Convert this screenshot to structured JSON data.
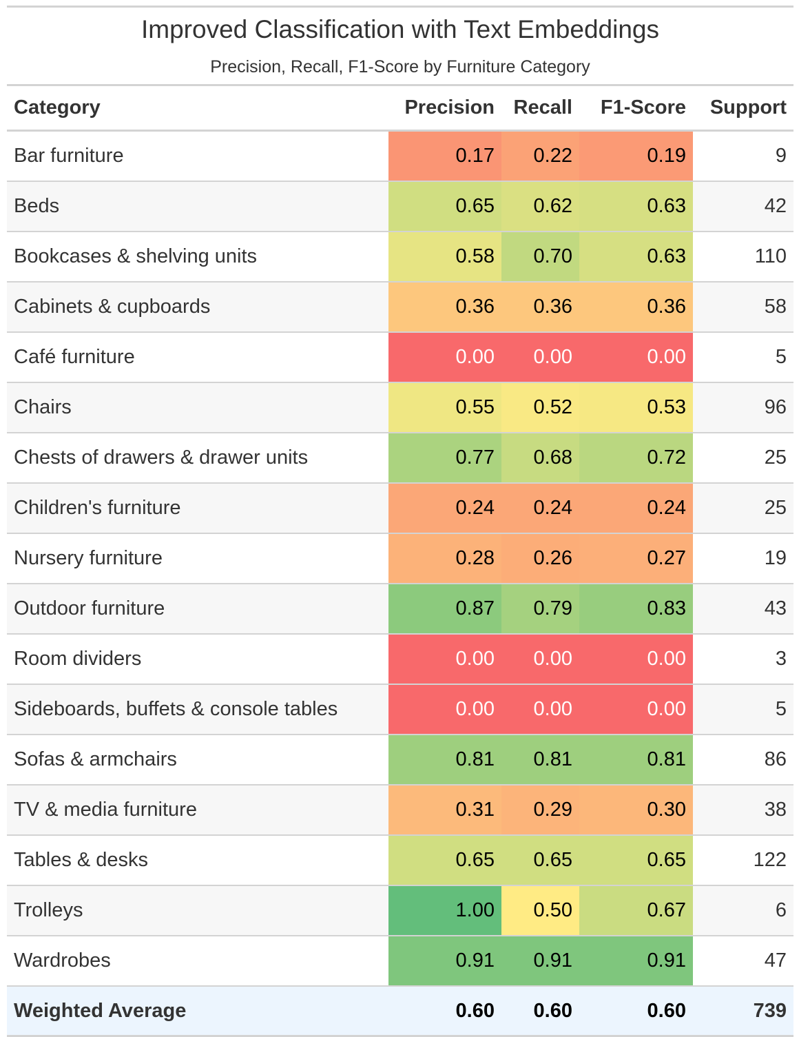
{
  "chart_data": {
    "type": "table",
    "title": "Improved Classification with Text Embeddings",
    "subtitle": "Precision, Recall, F1-Score by Furniture Category",
    "columns": [
      "Category",
      "Precision",
      "Recall",
      "F1-Score",
      "Support"
    ],
    "rows": [
      {
        "category": "Bar furniture",
        "precision": "0.17",
        "recall": "0.22",
        "f1": "0.19",
        "support": "9"
      },
      {
        "category": "Beds",
        "precision": "0.65",
        "recall": "0.62",
        "f1": "0.63",
        "support": "42"
      },
      {
        "category": "Bookcases & shelving units",
        "precision": "0.58",
        "recall": "0.70",
        "f1": "0.63",
        "support": "110"
      },
      {
        "category": "Cabinets & cupboards",
        "precision": "0.36",
        "recall": "0.36",
        "f1": "0.36",
        "support": "58"
      },
      {
        "category": "Café furniture",
        "precision": "0.00",
        "recall": "0.00",
        "f1": "0.00",
        "support": "5"
      },
      {
        "category": "Chairs",
        "precision": "0.55",
        "recall": "0.52",
        "f1": "0.53",
        "support": "96"
      },
      {
        "category": "Chests of drawers & drawer units",
        "precision": "0.77",
        "recall": "0.68",
        "f1": "0.72",
        "support": "25"
      },
      {
        "category": "Children's furniture",
        "precision": "0.24",
        "recall": "0.24",
        "f1": "0.24",
        "support": "25"
      },
      {
        "category": "Nursery furniture",
        "precision": "0.28",
        "recall": "0.26",
        "f1": "0.27",
        "support": "19"
      },
      {
        "category": "Outdoor furniture",
        "precision": "0.87",
        "recall": "0.79",
        "f1": "0.83",
        "support": "43"
      },
      {
        "category": "Room dividers",
        "precision": "0.00",
        "recall": "0.00",
        "f1": "0.00",
        "support": "3"
      },
      {
        "category": "Sideboards, buffets & console tables",
        "precision": "0.00",
        "recall": "0.00",
        "f1": "0.00",
        "support": "5"
      },
      {
        "category": "Sofas & armchairs",
        "precision": "0.81",
        "recall": "0.81",
        "f1": "0.81",
        "support": "86"
      },
      {
        "category": "TV & media furniture",
        "precision": "0.31",
        "recall": "0.29",
        "f1": "0.30",
        "support": "38"
      },
      {
        "category": "Tables & desks",
        "precision": "0.65",
        "recall": "0.65",
        "f1": "0.65",
        "support": "122"
      },
      {
        "category": "Trolleys",
        "precision": "1.00",
        "recall": "0.50",
        "f1": "0.67",
        "support": "6"
      },
      {
        "category": "Wardrobes",
        "precision": "0.91",
        "recall": "0.91",
        "f1": "0.91",
        "support": "47"
      }
    ],
    "summary": {
      "category": "Weighted Average",
      "precision": "0.60",
      "recall": "0.60",
      "f1": "0.60",
      "support": "739"
    },
    "color_scale": {
      "low": "#f8696b",
      "mid": "#ffeb84",
      "high": "#63be7b"
    }
  }
}
